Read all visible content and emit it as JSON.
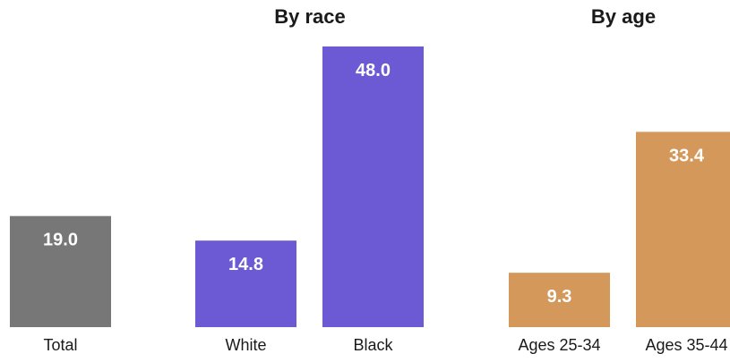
{
  "chart_data": {
    "type": "bar",
    "title": "",
    "ylim": [
      0,
      48
    ],
    "grid": false,
    "legend": "none",
    "groups": [
      {
        "title": "",
        "categories": [
          "Total"
        ],
        "values": [
          19.0
        ],
        "labels": [
          "19.0"
        ],
        "color": "#777777"
      },
      {
        "title": "By race",
        "categories": [
          "White",
          "Black"
        ],
        "values": [
          14.8,
          48.0
        ],
        "labels": [
          "14.8",
          "48.0"
        ],
        "color": "#6b5ad3"
      },
      {
        "title": "By age",
        "categories": [
          "Ages 25-34",
          "Ages 35-44"
        ],
        "values": [
          9.3,
          33.4
        ],
        "labels": [
          "9.3",
          "33.4"
        ],
        "color": "#d4985a"
      }
    ]
  }
}
